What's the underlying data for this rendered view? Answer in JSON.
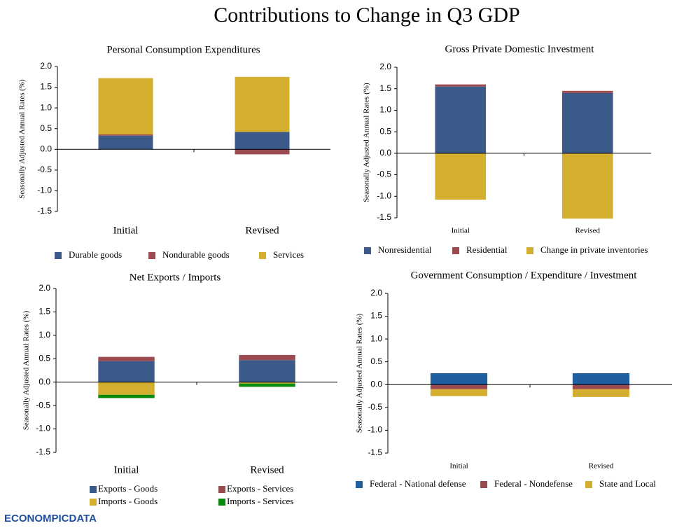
{
  "title": "Contributions to Change in Q3 GDP",
  "logo": "ECONOMPICDATA",
  "chart_data": [
    {
      "type": "bar",
      "stacked": true,
      "title": "Personal Consumption Expenditures",
      "y_label": "Seasonally Adjusted Annual Rates (%)",
      "categories": [
        "Initial",
        "Revised"
      ],
      "series": [
        {
          "name": "Durable goods",
          "color": "#3b5a8a",
          "values": [
            0.33,
            0.42
          ]
        },
        {
          "name": "Nondurable goods",
          "color": "#9b4a4f",
          "values": [
            0.03,
            -0.12
          ]
        },
        {
          "name": "Services",
          "color": "#d4ae2e",
          "values": [
            1.36,
            1.33
          ]
        }
      ],
      "ylim": [
        -1.5,
        2
      ],
      "yticks": [
        {
          "value": 2,
          "label": "2.0"
        },
        1.5,
        {
          "value": 1,
          "label": "1.0"
        },
        0.5,
        {
          "value": 0,
          "label": "0.0"
        },
        -0.5,
        {
          "value": -1,
          "label": "-1.0"
        },
        -1.5
      ]
    },
    {
      "type": "bar",
      "stacked": true,
      "title": "Gross Private Domestic Investment",
      "y_label": "Seasonally Adjusted Annual Rates (%)",
      "categories": [
        "Initial",
        "Revised"
      ],
      "series": [
        {
          "name": "Nonresidential",
          "color": "#3b5a8a",
          "values": [
            1.55,
            1.4
          ]
        },
        {
          "name": "Residential",
          "color": "#9b4a4f",
          "values": [
            0.05,
            0.05
          ]
        },
        {
          "name": "Change in private inventories",
          "color": "#d4ae2e",
          "values": [
            -1.08,
            -1.52
          ]
        }
      ],
      "ylim": [
        -1.5,
        2
      ],
      "yticks": [
        {
          "value": 2,
          "label": "2.0"
        },
        1.5,
        {
          "value": 1,
          "label": "1.0"
        },
        0.5,
        {
          "value": 0,
          "label": "0.0"
        },
        -0.5,
        {
          "value": -1,
          "label": "-1.0"
        },
        -1.5
      ]
    },
    {
      "type": "bar",
      "stacked": true,
      "title": "Net Exports / Imports",
      "y_label": "Seasonally Adjusted Annual Rates (%)",
      "categories": [
        "Initial",
        "Revised"
      ],
      "series": [
        {
          "name": "Exports - Goods",
          "color": "#3b5a8a",
          "values": [
            0.45,
            0.47
          ]
        },
        {
          "name": "Exports - Services",
          "color": "#9b4a4f",
          "values": [
            0.09,
            0.11
          ]
        },
        {
          "name": "Imports - Goods",
          "color": "#d4ae2e",
          "values": [
            -0.27,
            -0.03
          ]
        },
        {
          "name": "Imports - Services",
          "color": "#0a8a0a",
          "values": [
            -0.07,
            -0.07
          ]
        }
      ],
      "ylim": [
        -1.5,
        2
      ],
      "yticks": [
        {
          "value": 2,
          "label": "2.0"
        },
        1.5,
        {
          "value": 1,
          "label": "1.0"
        },
        0.5,
        {
          "value": 0,
          "label": "0.0"
        },
        -0.5,
        {
          "value": -1,
          "label": "-1.0"
        },
        -1.5
      ]
    },
    {
      "type": "bar",
      "stacked": true,
      "title": "Government  Consumption / Expenditure / Investment",
      "y_label": "Seasonally Adjusted Annual Rates (%)",
      "categories": [
        "Initial",
        "Revised"
      ],
      "series": [
        {
          "name": "Federal - National defense",
          "color": "#1f5fa0",
          "values": [
            0.25,
            0.25
          ]
        },
        {
          "name": "Federal - Nondefense",
          "color": "#9b4a4f",
          "values": [
            -0.1,
            -0.1
          ]
        },
        {
          "name": "State and Local",
          "color": "#d4ae2e",
          "values": [
            -0.15,
            -0.17
          ]
        }
      ],
      "ylim": [
        -1.5,
        2
      ],
      "yticks": [
        {
          "value": 2,
          "label": "2.0"
        },
        1.5,
        {
          "value": 1,
          "label": "1.0"
        },
        0.5,
        {
          "value": 0,
          "label": "0.0"
        },
        -0.5,
        {
          "value": -1,
          "label": "-1.0"
        },
        -1.5
      ]
    }
  ]
}
